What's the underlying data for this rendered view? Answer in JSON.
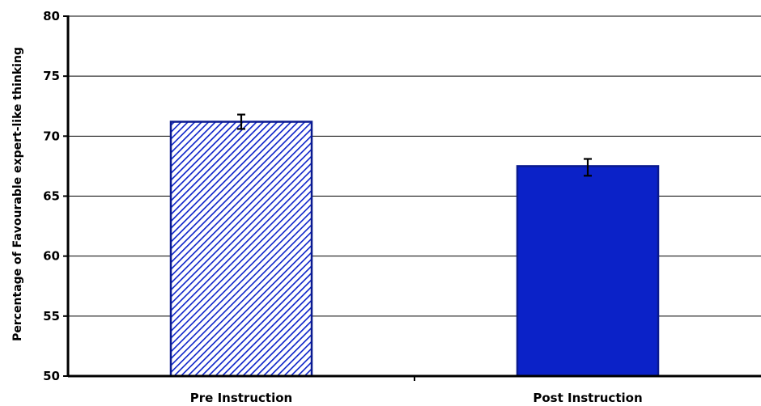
{
  "chart_data": {
    "type": "bar",
    "ylabel": "Percentage of Favourable expert-like thinking",
    "xlabel": "",
    "ylim": [
      50,
      80
    ],
    "yticks": [
      50,
      55,
      60,
      65,
      70,
      75,
      80
    ],
    "grid": true,
    "categories": [
      "Pre Instruction",
      "Post Instruction"
    ],
    "values": [
      71.2,
      67.5
    ],
    "error_low": [
      70.6,
      66.7
    ],
    "error_high": [
      71.8,
      68.1
    ],
    "bar_styles": [
      "hatched",
      "solid"
    ],
    "colors": {
      "bar": "#0b22c8",
      "bar_edge": "#0a1a8f",
      "hatch": "#0b22c8",
      "axis": "#000000",
      "grid": "#000000"
    }
  }
}
